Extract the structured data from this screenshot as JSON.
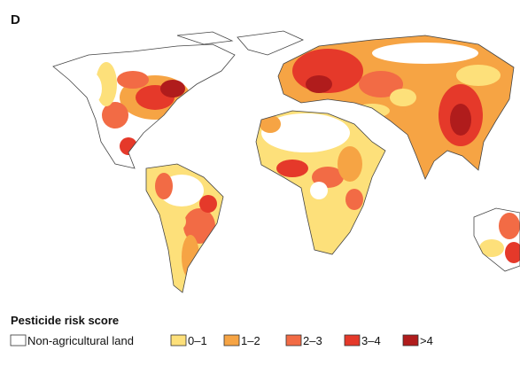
{
  "panel": "D",
  "legend": {
    "title": "Pesticide risk score",
    "items": [
      {
        "label": "Non-agricultural land",
        "color": "#ffffff"
      },
      {
        "label": "0–1",
        "color": "#fde07a"
      },
      {
        "label": "1–2",
        "color": "#f6a444"
      },
      {
        "label": "2–3",
        "color": "#f26b45"
      },
      {
        "label": "3–4",
        "color": "#e5392a"
      },
      {
        "label": ">4",
        "color": "#b01c1c"
      }
    ]
  }
}
